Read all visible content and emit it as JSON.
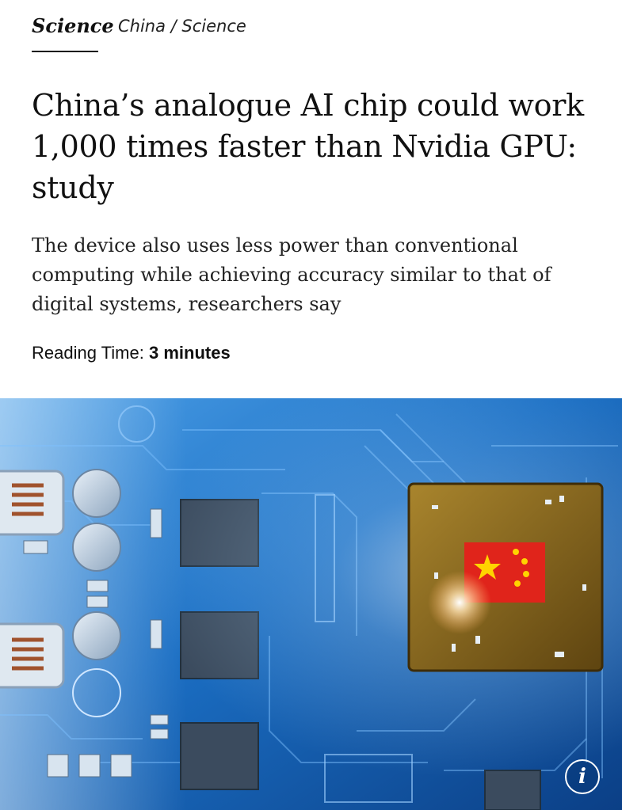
{
  "nav": {
    "primary_tab": "Science",
    "secondary_tab": "China / Science"
  },
  "article": {
    "headline": "China’s analogue AI chip could work 1,000 times faster than Nvidia GPU: study",
    "subheadline": "The device also uses less power than conventional computing while achieving accuracy similar to that of digital systems, researchers say",
    "reading_time_label": "Reading Time:",
    "reading_time_value": "3 minutes"
  },
  "hero": {
    "info_button_icon": "info-icon",
    "info_glyph": "i",
    "colors": {
      "board_blue": "#1b6fc4",
      "board_dark": "#0b3f86",
      "chip_gold": "#8a6a22",
      "flag_red": "#e0241b",
      "flag_star": "#ffd400"
    }
  }
}
